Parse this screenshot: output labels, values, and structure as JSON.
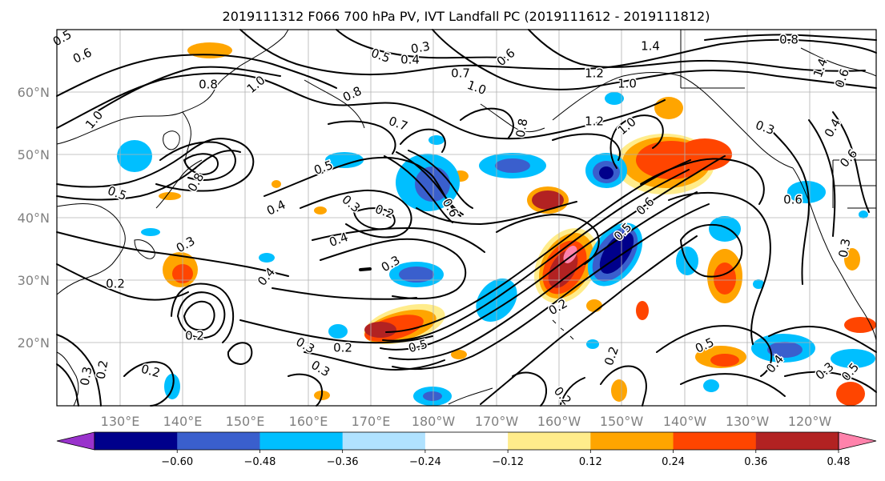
{
  "title": "2019111312 F066 700 hPa PV, IVT Landfall PC (2019111612 - 2019111812)",
  "lon_ticks": [
    "130°E",
    "140°E",
    "150°E",
    "160°E",
    "170°E",
    "180°W",
    "170°W",
    "160°W",
    "150°W",
    "140°W",
    "130°W",
    "120°W"
  ],
  "lat_ticks": [
    "60°N",
    "50°N",
    "40°N",
    "30°N",
    "20°N"
  ],
  "colorbar": {
    "colors": [
      "#9932cc",
      "#00008b",
      "#3a5fcd",
      "#00bfff",
      "#b0e2ff",
      "#ffffff",
      "#ffec8b",
      "#ffa500",
      "#ff4500",
      "#b22222",
      "#ff82ab"
    ],
    "tick_labels": [
      "−0.60",
      "−0.48",
      "−0.36",
      "−0.24",
      "−0.12",
      "0.12",
      "0.24",
      "0.36",
      "0.48",
      "0.60"
    ]
  },
  "contour_labels": [
    "0.5",
    "0.6",
    "0.3",
    "0.5",
    "0.4",
    "0.6",
    "0.7",
    "1.0",
    "1.4",
    "0.8",
    "1.2",
    "1.4",
    "0.6",
    "0.8",
    "1.0",
    "0.8",
    "1.0",
    "1.2",
    "1.0",
    "0.8",
    "0.7",
    "0.3",
    "0.4",
    "0.6",
    "1.0",
    "0.8",
    "0.5",
    "0.5",
    "0.4",
    "0.3",
    "0.2",
    "0.6",
    "0.5",
    "0.6",
    "0.6",
    "0.3",
    "0.4",
    "0.2",
    "0.4",
    "0.3",
    "0.2",
    "0.3",
    "0.2",
    "0.5",
    "0.3",
    "0.2",
    "0.2",
    "0.2",
    "0.5",
    "0.3",
    "0.2",
    "0.3",
    "0.2",
    "0.4",
    "0.5",
    "0.3"
  ]
}
